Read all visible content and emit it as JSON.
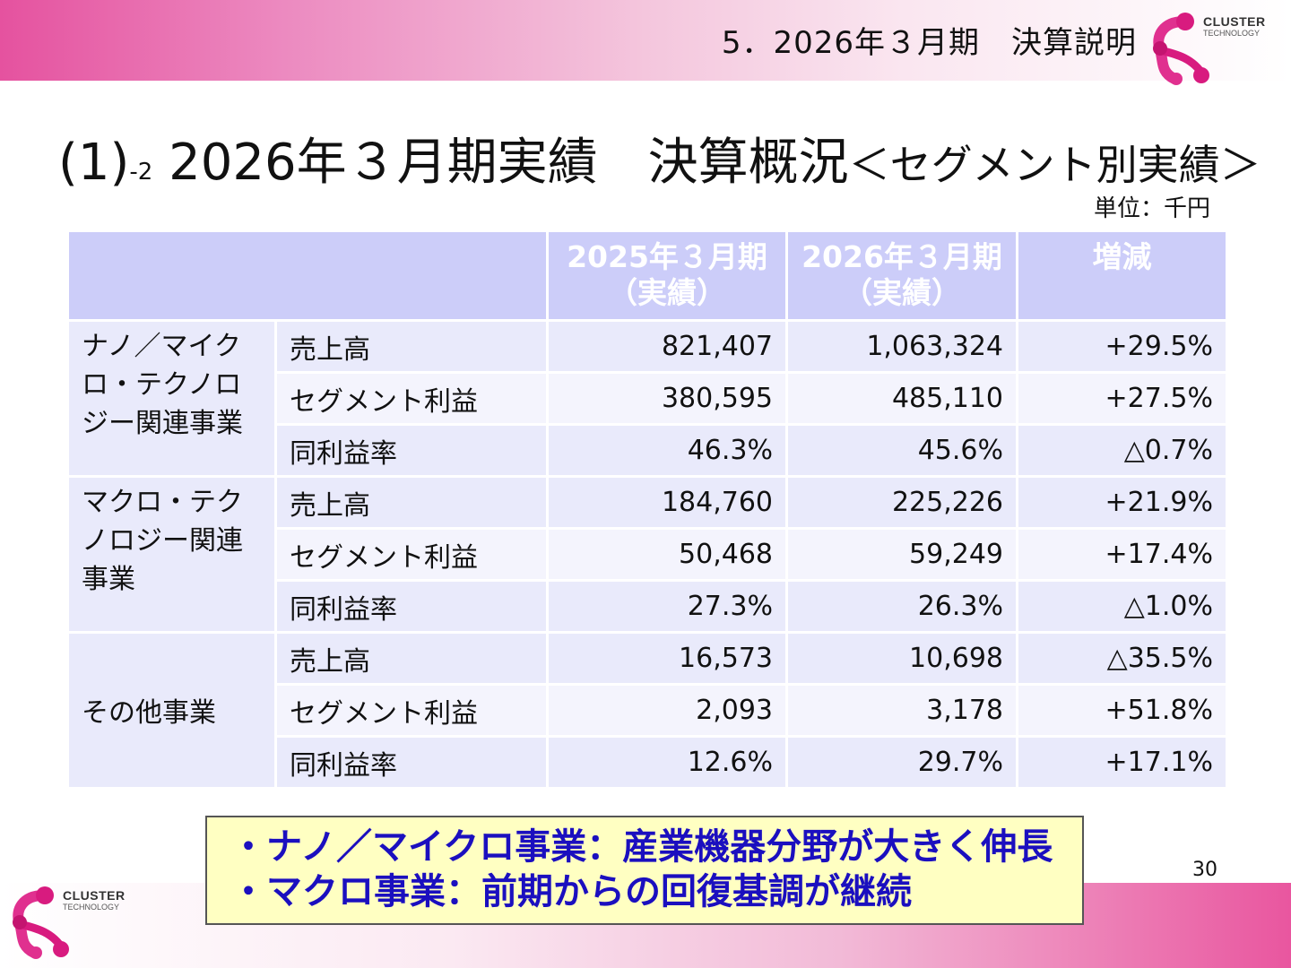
{
  "header": {
    "section_title": "5．2026年３月期　決算説明",
    "logo": {
      "line1": "CLUSTER",
      "line2": "TECHNOLOGY"
    }
  },
  "title": {
    "prefix": "(1)",
    "prefix_sub": "-2",
    "main": " 2026年３月期実績　決算概況",
    "suffix": "＜セグメント別実績＞"
  },
  "unit": "単位：千円",
  "table": {
    "columns": [
      "",
      "2025年３月期\n（実績）",
      "2026年３月期\n（実績）",
      "増減"
    ],
    "col_2025": {
      "line1": "2025年３月期",
      "line2": "（実績）"
    },
    "col_2026": {
      "line1": "2026年３月期",
      "line2": "（実績）"
    },
    "col_change": "増減",
    "segments": [
      {
        "name": "ナノ／マイクロ・テクノロジー関連事業",
        "rows": [
          {
            "item": "売上高",
            "fy2025": "821,407",
            "fy2026": "1,063,324",
            "change": "+29.5%"
          },
          {
            "item": "セグメント利益",
            "fy2025": "380,595",
            "fy2026": "485,110",
            "change": "+27.5%"
          },
          {
            "item": "同利益率",
            "fy2025": "46.3%",
            "fy2026": "45.6%",
            "change": "△0.7%"
          }
        ]
      },
      {
        "name": "マクロ・テクノロジー関連事業",
        "rows": [
          {
            "item": "売上高",
            "fy2025": "184,760",
            "fy2026": "225,226",
            "change": "+21.9%"
          },
          {
            "item": "セグメント利益",
            "fy2025": "50,468",
            "fy2026": "59,249",
            "change": "+17.4%"
          },
          {
            "item": "同利益率",
            "fy2025": "27.3%",
            "fy2026": "26.3%",
            "change": "△1.0%"
          }
        ]
      },
      {
        "name": "その他事業",
        "rows": [
          {
            "item": "売上高",
            "fy2025": "16,573",
            "fy2026": "10,698",
            "change": "△35.5%"
          },
          {
            "item": "セグメント利益",
            "fy2025": "2,093",
            "fy2026": "3,178",
            "change": "+51.8%"
          },
          {
            "item": "同利益率",
            "fy2025": "12.6%",
            "fy2026": "29.7%",
            "change": "+17.1%"
          }
        ]
      }
    ]
  },
  "notes": [
    "・ナノ／マイクロ事業：産業機器分野が大きく伸長",
    "・マクロ事業：前期からの回復基調が継続"
  ],
  "page_number": "30",
  "colors": {
    "brand_pink": "#e5529f",
    "header_cell": "#cccdf9",
    "row_dark": "#e9eafb",
    "row_light": "#f4f4fd",
    "note_bg": "#ffffc2",
    "note_text": "#1b0fbf"
  }
}
